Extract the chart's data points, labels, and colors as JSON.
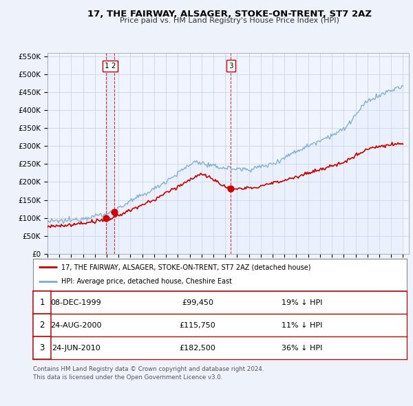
{
  "title": "17, THE FAIRWAY, ALSAGER, STOKE-ON-TRENT, ST7 2AZ",
  "subtitle": "Price paid vs. HM Land Registry's House Price Index (HPI)",
  "red_line_label": "17, THE FAIRWAY, ALSAGER, STOKE-ON-TRENT, ST7 2AZ (detached house)",
  "blue_line_label": "HPI: Average price, detached house, Cheshire East",
  "transactions": [
    {
      "num": 1,
      "date": "08-DEC-1999",
      "price": 99450,
      "price_str": "£99,450",
      "year": 1999.93,
      "hpi_pct": "19% ↓ HPI"
    },
    {
      "num": 2,
      "date": "24-AUG-2000",
      "price": 115750,
      "price_str": "£115,750",
      "year": 2000.64,
      "hpi_pct": "11% ↓ HPI"
    },
    {
      "num": 3,
      "date": "24-JUN-2010",
      "price": 182500,
      "price_str": "£182,500",
      "year": 2010.48,
      "hpi_pct": "36% ↓ HPI"
    }
  ],
  "footnote1": "Contains HM Land Registry data © Crown copyright and database right 2024.",
  "footnote2": "This data is licensed under the Open Government Licence v3.0.",
  "ylim": [
    0,
    560000
  ],
  "yticks": [
    0,
    50000,
    100000,
    150000,
    200000,
    250000,
    300000,
    350000,
    400000,
    450000,
    500000,
    550000
  ],
  "xlim_start": 1995.0,
  "xlim_end": 2025.5,
  "background_color": "#eef2fa",
  "plot_bg_color": "#f0f4ff",
  "grid_color": "#c5cde0",
  "red_color": "#cc0000",
  "blue_color": "#7baad4",
  "blue_fill": "#dce8f5"
}
